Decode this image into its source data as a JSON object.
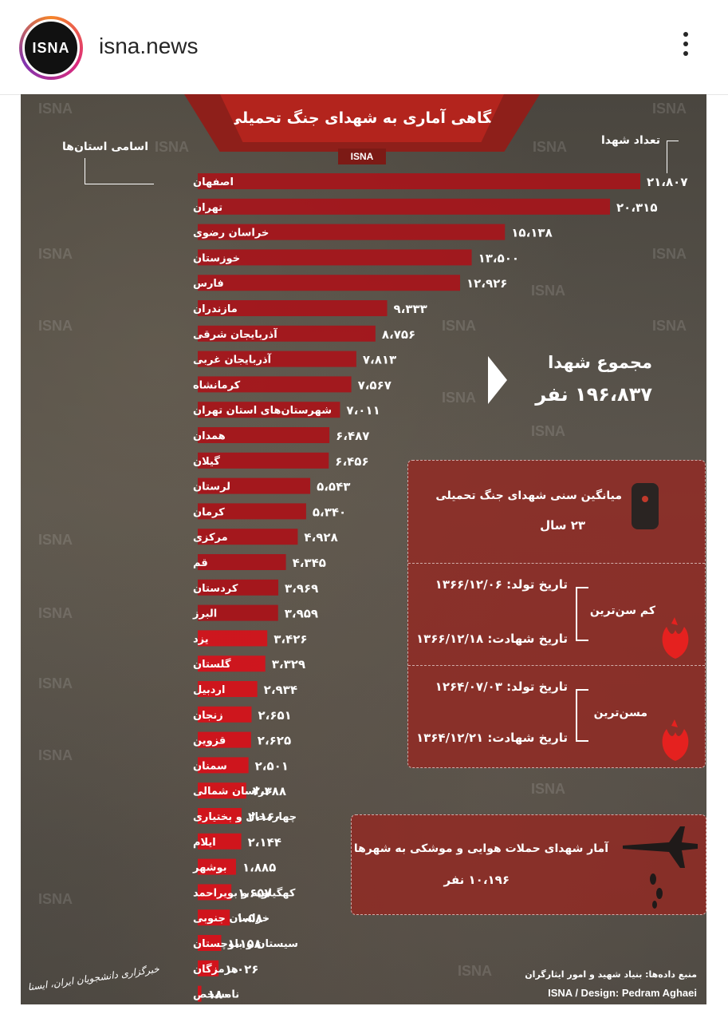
{
  "header": {
    "avatar_text": "ISNA",
    "account": "isna.news"
  },
  "poster": {
    "title": "نگاهی آماری به شهدای جنگ تحمیلی",
    "badge": "ISNA",
    "watermark": "ISNA",
    "label_provinces": "اسامی استان‌ها",
    "label_count": "تعداد شهدا",
    "total_title": "مجموع شهدا",
    "total_value": "۱۹۶،۸۳۷ نفر",
    "avg_age_title": "میانگین سنی شهدای جنگ تحمیلی",
    "avg_age_value": "۲۳ سال",
    "youngest_label": "کم سن‌ترین",
    "youngest_birth": "تاریخ تولد: ۱۳۶۶/۱۲/۰۶",
    "youngest_death": "تاریخ شهادت: ۱۳۶۶/۱۲/۱۸",
    "oldest_label": "مسن‌ترین",
    "oldest_birth": "تاریخ تولد: ۱۲۶۴/۰۷/۰۳",
    "oldest_death": "تاریخ شهادت: ۱۳۶۴/۱۲/۲۱",
    "air_title": "آمار شهدای حملات هوایی و موشکی به شهرها",
    "air_value": "۱۰،۱۹۶ نفر",
    "source": "منبع داده‌ها: بنیاد شهید و امور ایثارگران",
    "credit": "ISNA / Design: Pedram Aghaei",
    "signature": "خبرگزاری دانشجویان ایران، ایسنا"
  },
  "colors": {
    "bar": "#a8141a",
    "bar_light": "#d2141c",
    "panel": "#96261f",
    "title_bg": "#b3241d"
  },
  "icons": [
    "dog-tag-icon",
    "tulip-icon",
    "fighter-jet-icon",
    "more-options-icon"
  ],
  "chart_data": {
    "type": "bar",
    "orientation": "horizontal",
    "categories": [
      "اصفهان",
      "تهران",
      "خراسان رضوی",
      "خوزستان",
      "فارس",
      "مازندران",
      "آذربایجان شرقی",
      "آذربایجان غربی",
      "کرمانشاه",
      "شهرستان‌های استان تهران",
      "همدان",
      "گیلان",
      "لرستان",
      "کرمان",
      "مرکزی",
      "قم",
      "کردستان",
      "البرز",
      "یزد",
      "گلستان",
      "اردبیل",
      "زنجان",
      "قزوین",
      "سمنان",
      "خراسان شمالی",
      "چهارمحال و بختیاری",
      "ایلام",
      "بوشهر",
      "کهگیلویه و بویراحمد",
      "خراسان جنوبی",
      "سیستان و بلوچستان",
      "هرمزگان",
      "نامشخص"
    ],
    "values": [
      21807,
      20315,
      15138,
      13500,
      12926,
      9333,
      8756,
      7813,
      7567,
      7011,
      6487,
      6456,
      5543,
      5340,
      4928,
      4345,
      3969,
      3959,
      3426,
      3329,
      2934,
      2651,
      2625,
      2501,
      2388,
      2160,
      2144,
      1885,
      1657,
      1580,
      1158,
      1026,
      180
    ],
    "value_labels": [
      "۲۱،۸۰۷",
      "۲۰،۳۱۵",
      "۱۵،۱۳۸",
      "۱۳،۵۰۰",
      "۱۲،۹۲۶",
      "۹،۳۳۳",
      "۸،۷۵۶",
      "۷،۸۱۳",
      "۷،۵۶۷",
      "۷،۰۱۱",
      "۶،۴۸۷",
      "۶،۴۵۶",
      "۵،۵۴۳",
      "۵،۳۴۰",
      "۴،۹۲۸",
      "۴،۳۴۵",
      "۳،۹۶۹",
      "۳،۹۵۹",
      "۳،۴۲۶",
      "۳،۳۲۹",
      "۲،۹۳۴",
      "۲،۶۵۱",
      "۲،۶۲۵",
      "۲،۵۰۱",
      "۲،۳۸۸",
      "۲،۱۶۰",
      "۲،۱۴۴",
      "۱،۸۸۵",
      "۱،۶۵۷",
      "۱،۵۸۰",
      "۱،۱۵۸",
      "۱،۰۲۶",
      "۱۸۰"
    ],
    "title": "نگاهی آماری به شهدای جنگ تحمیلی",
    "xlabel": "تعداد شهدا",
    "ylabel": "اسامی استان‌ها",
    "xlim": [
      0,
      21807
    ],
    "grid": false,
    "legend": "none"
  }
}
